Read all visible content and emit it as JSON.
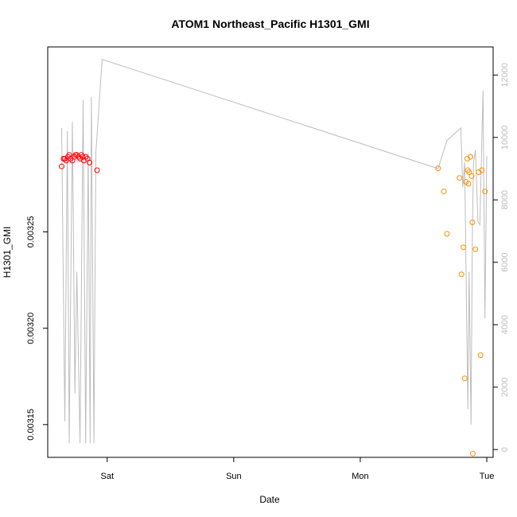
{
  "chart_data": {
    "type": "scatter",
    "title": "ATOM1 Northeast_Pacific H1301_GMI",
    "xlabel": "Date",
    "ylabel": "H1301_GMI",
    "x_ticks": [
      {
        "label": "Sat",
        "day": 1.0
      },
      {
        "label": "Sun",
        "day": 2.0
      },
      {
        "label": "Mon",
        "day": 3.0
      },
      {
        "label": "Tue",
        "day": 4.0
      }
    ],
    "xlim": [
      0.53,
      4.05
    ],
    "ylim": [
      0.003133,
      0.003346
    ],
    "y_ticks": [
      0.00315,
      0.0032,
      0.00325
    ],
    "y_tick_labels": [
      "0.00315",
      "0.00320",
      "0.00325"
    ],
    "y2lim": [
      -250,
      12900
    ],
    "y2_ticks": [
      0,
      2000,
      4000,
      6000,
      8000,
      10000,
      12000
    ],
    "y2_tick_labels": [
      "0",
      "2000",
      "4000",
      "6000",
      "8000",
      "10000",
      "12000"
    ],
    "series": [
      {
        "color": "#ff0000",
        "marker": "circle-open",
        "axis": "left",
        "points": [
          [
            0.64,
            0.003284
          ],
          [
            0.655,
            0.003288
          ],
          [
            0.665,
            0.003288
          ],
          [
            0.675,
            0.003287
          ],
          [
            0.69,
            0.003289
          ],
          [
            0.7,
            0.00329
          ],
          [
            0.71,
            0.003288
          ],
          [
            0.725,
            0.003287
          ],
          [
            0.74,
            0.003289
          ],
          [
            0.75,
            0.00329
          ],
          [
            0.76,
            0.00329
          ],
          [
            0.775,
            0.003289
          ],
          [
            0.785,
            0.003288
          ],
          [
            0.795,
            0.00329
          ],
          [
            0.805,
            0.003289
          ],
          [
            0.815,
            0.003287
          ],
          [
            0.83,
            0.003289
          ],
          [
            0.845,
            0.003288
          ],
          [
            0.86,
            0.003286
          ],
          [
            0.92,
            0.003282
          ]
        ]
      },
      {
        "color": "#ff8c00",
        "marker": "circle-open",
        "axis": "left",
        "points": [
          [
            3.615,
            0.003283
          ],
          [
            3.66,
            0.003271
          ],
          [
            3.685,
            0.003249
          ],
          [
            3.785,
            0.003278
          ],
          [
            3.8,
            0.003228
          ],
          [
            3.815,
            0.003242
          ],
          [
            3.825,
            0.003174
          ],
          [
            3.835,
            0.003276
          ],
          [
            3.845,
            0.003288
          ],
          [
            3.85,
            0.003282
          ],
          [
            3.855,
            0.003275
          ],
          [
            3.86,
            0.003281
          ],
          [
            3.87,
            0.003289
          ],
          [
            3.88,
            0.003279
          ],
          [
            3.885,
            0.003255
          ],
          [
            3.89,
            0.003135
          ],
          [
            3.91,
            0.003241
          ],
          [
            3.935,
            0.003281
          ],
          [
            3.95,
            0.003186
          ],
          [
            3.96,
            0.003282
          ],
          [
            3.985,
            0.003271
          ]
        ]
      },
      {
        "color": "#bdbdbd",
        "marker": "line",
        "axis": "right",
        "points": [
          [
            0.64,
            10300
          ],
          [
            0.665,
            900
          ],
          [
            0.685,
            10200
          ],
          [
            0.7,
            200
          ],
          [
            0.725,
            10500
          ],
          [
            0.745,
            1800
          ],
          [
            0.76,
            5700
          ],
          [
            0.785,
            200
          ],
          [
            0.81,
            11200
          ],
          [
            0.83,
            200
          ],
          [
            0.85,
            9500
          ],
          [
            0.865,
            200
          ],
          [
            0.875,
            11300
          ],
          [
            0.895,
            200
          ],
          [
            0.91,
            9500
          ],
          [
            0.96,
            12500
          ],
          [
            3.615,
            9000
          ],
          [
            3.685,
            9900
          ],
          [
            3.795,
            10300
          ],
          [
            3.81,
            8400
          ],
          [
            3.825,
            9200
          ],
          [
            3.84,
            4400
          ],
          [
            3.85,
            1300
          ],
          [
            3.86,
            5700
          ],
          [
            3.875,
            800
          ],
          [
            3.885,
            6700
          ],
          [
            3.895,
            9200
          ],
          [
            3.91,
            9600
          ],
          [
            3.93,
            7300
          ],
          [
            3.945,
            7200
          ],
          [
            3.97,
            11500
          ],
          [
            3.985,
            4200
          ],
          [
            4.0,
            9400
          ]
        ]
      }
    ],
    "grid": false,
    "legend": "none"
  }
}
